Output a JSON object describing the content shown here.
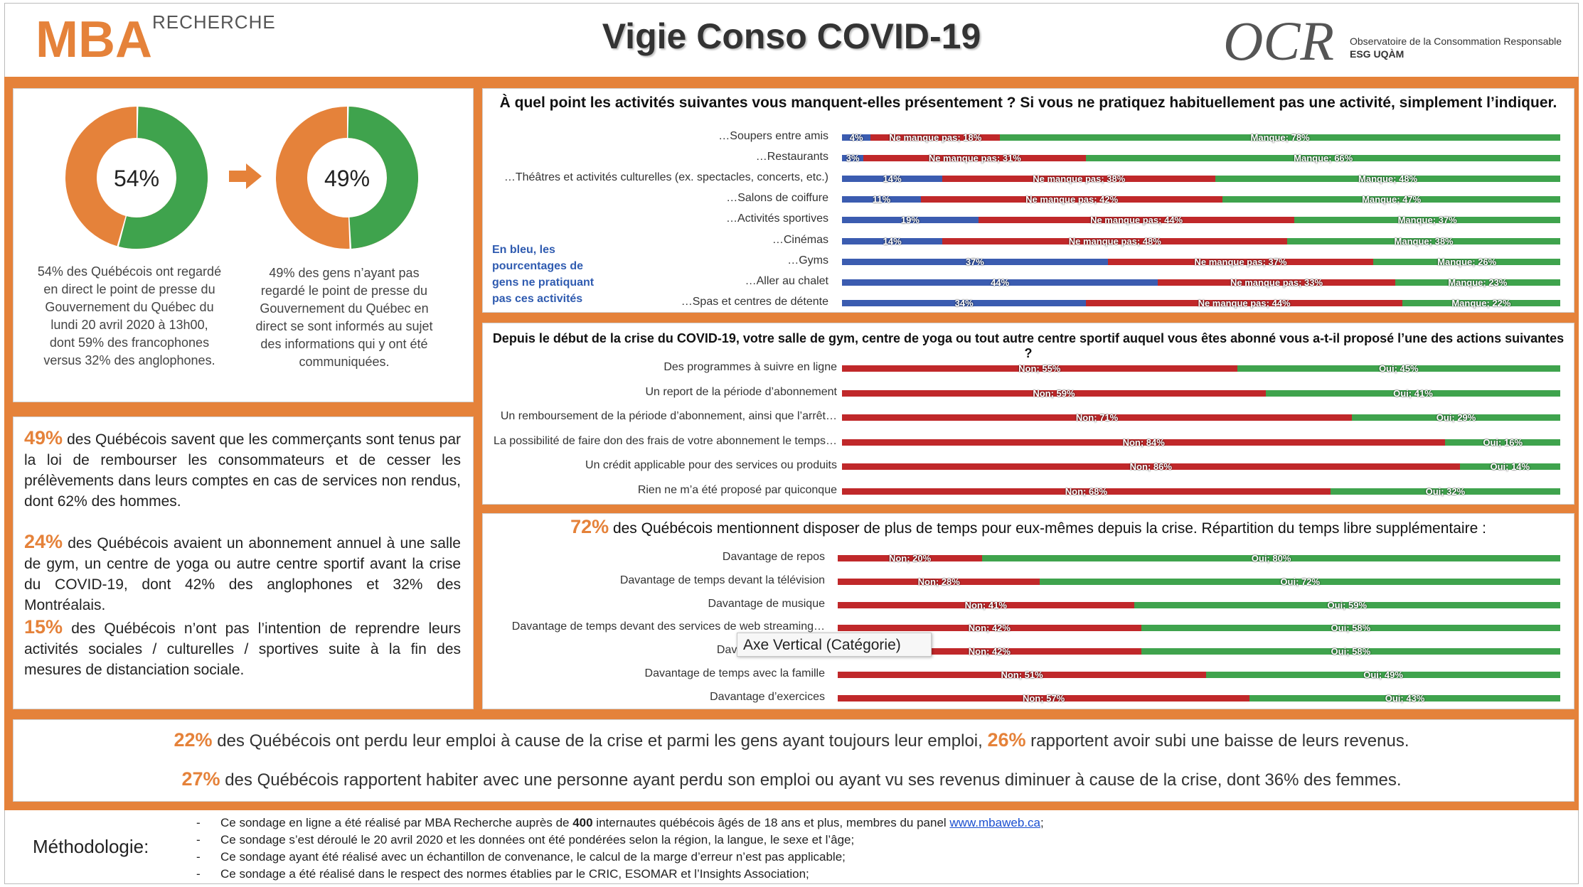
{
  "header": {
    "logo_text": "MBA",
    "logo_sub": "RECHERCHE",
    "title": "Vigie Conso COVID-19",
    "ocr_logo": "OCR",
    "ocr_line1": "Observatoire de la Consommation Responsable",
    "ocr_line2": "ESG UQÀM"
  },
  "donuts": [
    {
      "value_label": "54%",
      "fraction": 0.54,
      "caption": "54% des Québécois ont regardé en direct le point de presse du Gouvernement du Québec du lundi 20 avril 2020 à 13h00, dont 59% des francophones versus 32% des anglophones."
    },
    {
      "value_label": "49%",
      "fraction": 0.49,
      "caption": "49% des gens n’ayant pas regardé le point de presse du Gouvernement du Québec en direct se sont informés au sujet des informations qui y ont été communiquées."
    }
  ],
  "stats": [
    {
      "big": "49%",
      "text": " des Québécois savent que les commerçants sont tenus par la loi de rembourser les consommateurs et de cesser les prélèvements dans leurs comptes en cas de services non rendus, dont 62% des hommes."
    },
    {
      "big": "24%",
      "text": " des Québécois avaient un abonnement annuel à une salle de gym, un centre de yoga ou autre centre sportif avant la crise du COVID-19, dont 42% des anglophones et 32% des Montréalais."
    },
    {
      "big": "15%",
      "text": " des Québécois n’ont pas l’intention de reprendre leurs activités sociales / culturelles / sportives suite à la fin des mesures de distanciation sociale."
    }
  ],
  "blue_note": "En bleu, les pourcentages de gens ne pratiquant pas ces activités",
  "tooltip": "Axe Vertical (Catégorie)",
  "chart_data": [
    {
      "type": "bar",
      "stacked": true,
      "orientation": "horizontal",
      "title": "À quel point les activités suivantes vous manquent-elles présentement ? Si vous ne pratiquez habituellement pas une activité, simplement l’indiquer.",
      "categories": [
        "…Soupers entre amis",
        "…Restaurants",
        "…Théâtres et activités culturelles (ex. spectacles, concerts, etc.)",
        "…Salons de coiffure",
        "…Activités sportives",
        "…Cinémas",
        "…Gyms",
        "…Aller au chalet",
        "…Spas et centres de détente"
      ],
      "series": [
        {
          "prefix": "",
          "color": "#3B5CB0",
          "values": [
            4,
            3,
            14,
            11,
            19,
            14,
            37,
            44,
            34
          ]
        },
        {
          "prefix": "Ne manque pas; ",
          "color": "#C0282A",
          "values": [
            18,
            31,
            38,
            42,
            44,
            48,
            37,
            33,
            44
          ]
        },
        {
          "prefix": "Manque; ",
          "color": "#3FA34D",
          "values": [
            78,
            66,
            48,
            47,
            37,
            38,
            26,
            23,
            22
          ]
        }
      ],
      "xlim": [
        0,
        100
      ]
    },
    {
      "type": "bar",
      "stacked": true,
      "orientation": "horizontal",
      "title": "Depuis le début de la crise du COVID-19, votre salle de gym, centre de yoga ou tout autre centre sportif auquel vous êtes abonné vous a-t-il proposé l’une des actions suivantes ?",
      "categories": [
        "Des programmes à suivre en ligne",
        "Un report de la période d’abonnement",
        "Un remboursement de la période d’abonnement, ainsi que l’arrêt…",
        "La possibilité de faire don des frais de votre abonnement le temps…",
        "Un crédit applicable pour des services ou produits",
        "Rien ne m’a été proposé par quiconque"
      ],
      "series": [
        {
          "prefix": "Non; ",
          "color": "#C0282A",
          "values": [
            55,
            59,
            71,
            84,
            86,
            68
          ]
        },
        {
          "prefix": "Oui; ",
          "color": "#3FA34D",
          "values": [
            45,
            41,
            29,
            16,
            14,
            32
          ]
        }
      ],
      "xlim": [
        0,
        100
      ]
    },
    {
      "type": "bar",
      "stacked": true,
      "orientation": "horizontal",
      "title_big": "72%",
      "title": " des Québécois mentionnent disposer de plus de temps pour eux-mêmes depuis la crise. Répartition du temps libre supplémentaire :",
      "categories": [
        "Davantage de repos",
        "Davantage de temps devant la télévision",
        "Davantage de musique",
        "Davantage de temps devant des services de web streaming…",
        "Davantage de lecture",
        "Davantage de temps avec la famille",
        "Davantage d’exercices"
      ],
      "series": [
        {
          "prefix": "Non; ",
          "color": "#C0282A",
          "values": [
            20,
            28,
            41,
            42,
            42,
            51,
            57
          ]
        },
        {
          "prefix": "Oui; ",
          "color": "#3FA34D",
          "values": [
            80,
            72,
            59,
            58,
            58,
            49,
            43
          ]
        }
      ],
      "xlim": [
        0,
        100
      ]
    }
  ],
  "bottom": {
    "line1_a": "22%",
    "line1_b": " des Québécois ont perdu leur emploi à cause de la crise et parmi les gens ayant toujours leur emploi, ",
    "line1_c": "26%",
    "line1_d": " rapportent avoir subi une baisse de leurs revenus.",
    "line2_a": "27%",
    "line2_b": " des Québécois rapportent habiter avec une personne ayant perdu son emploi ou ayant vu ses revenus diminuer à cause de la crise, dont 36% des femmes."
  },
  "methodology": {
    "label": "Méthodologie:",
    "items": [
      {
        "pre": "Ce sondage en ligne a été réalisé par MBA Recherche auprès de ",
        "bold": "400",
        "post": " internautes québécois âgés de 18 ans et plus, membres du panel ",
        "link": "www.mbaweb.ca",
        "end": ";"
      },
      {
        "pre": "Ce sondage s’est déroulé le 20 avril 2020 et les données ont été pondérées selon la région, la langue, le sexe et l’âge;"
      },
      {
        "pre": "Ce sondage ayant été réalisé avec un échantillon de convenance, le calcul de la marge d’erreur n’est pas applicable;"
      },
      {
        "pre": "Ce sondage a été réalisé dans le respect des normes établies par le CRIC, ESOMAR et l’Insights Association;"
      }
    ]
  }
}
